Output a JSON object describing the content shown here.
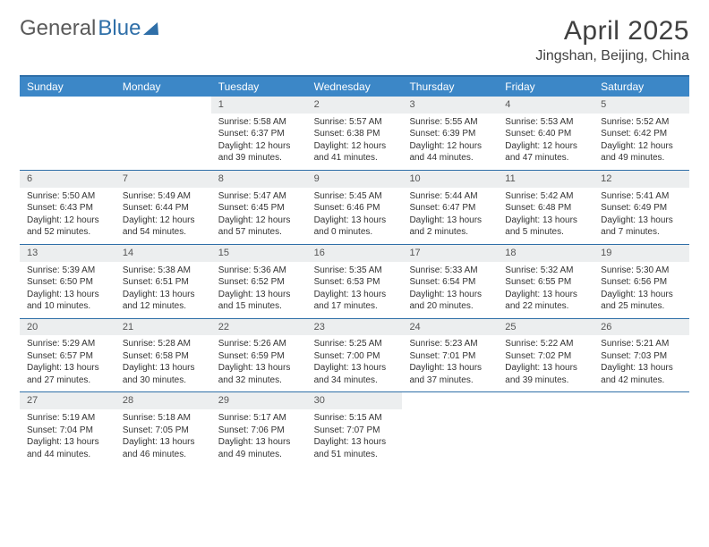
{
  "brand": {
    "first": "General",
    "second": "Blue"
  },
  "title": "April 2025",
  "location": "Jingshan, Beijing, China",
  "colors": {
    "header_bg": "#3c87c7",
    "header_text": "#ffffff",
    "rule": "#2f6fa8",
    "daynum_bg": "#eceeef",
    "text": "#333333",
    "brand_gray": "#5a5a5a",
    "brand_blue": "#2f6fa8"
  },
  "typography": {
    "title_fontsize": 30,
    "location_fontsize": 16,
    "dayheader_fontsize": 12,
    "daynum_fontsize": 11,
    "body_fontsize": 10
  },
  "day_names": [
    "Sunday",
    "Monday",
    "Tuesday",
    "Wednesday",
    "Thursday",
    "Friday",
    "Saturday"
  ],
  "weeks": [
    [
      {
        "n": "",
        "sr": "",
        "ss": "",
        "dl": ""
      },
      {
        "n": "",
        "sr": "",
        "ss": "",
        "dl": ""
      },
      {
        "n": "1",
        "sr": "Sunrise: 5:58 AM",
        "ss": "Sunset: 6:37 PM",
        "dl": "Daylight: 12 hours and 39 minutes."
      },
      {
        "n": "2",
        "sr": "Sunrise: 5:57 AM",
        "ss": "Sunset: 6:38 PM",
        "dl": "Daylight: 12 hours and 41 minutes."
      },
      {
        "n": "3",
        "sr": "Sunrise: 5:55 AM",
        "ss": "Sunset: 6:39 PM",
        "dl": "Daylight: 12 hours and 44 minutes."
      },
      {
        "n": "4",
        "sr": "Sunrise: 5:53 AM",
        "ss": "Sunset: 6:40 PM",
        "dl": "Daylight: 12 hours and 47 minutes."
      },
      {
        "n": "5",
        "sr": "Sunrise: 5:52 AM",
        "ss": "Sunset: 6:42 PM",
        "dl": "Daylight: 12 hours and 49 minutes."
      }
    ],
    [
      {
        "n": "6",
        "sr": "Sunrise: 5:50 AM",
        "ss": "Sunset: 6:43 PM",
        "dl": "Daylight: 12 hours and 52 minutes."
      },
      {
        "n": "7",
        "sr": "Sunrise: 5:49 AM",
        "ss": "Sunset: 6:44 PM",
        "dl": "Daylight: 12 hours and 54 minutes."
      },
      {
        "n": "8",
        "sr": "Sunrise: 5:47 AM",
        "ss": "Sunset: 6:45 PM",
        "dl": "Daylight: 12 hours and 57 minutes."
      },
      {
        "n": "9",
        "sr": "Sunrise: 5:45 AM",
        "ss": "Sunset: 6:46 PM",
        "dl": "Daylight: 13 hours and 0 minutes."
      },
      {
        "n": "10",
        "sr": "Sunrise: 5:44 AM",
        "ss": "Sunset: 6:47 PM",
        "dl": "Daylight: 13 hours and 2 minutes."
      },
      {
        "n": "11",
        "sr": "Sunrise: 5:42 AM",
        "ss": "Sunset: 6:48 PM",
        "dl": "Daylight: 13 hours and 5 minutes."
      },
      {
        "n": "12",
        "sr": "Sunrise: 5:41 AM",
        "ss": "Sunset: 6:49 PM",
        "dl": "Daylight: 13 hours and 7 minutes."
      }
    ],
    [
      {
        "n": "13",
        "sr": "Sunrise: 5:39 AM",
        "ss": "Sunset: 6:50 PM",
        "dl": "Daylight: 13 hours and 10 minutes."
      },
      {
        "n": "14",
        "sr": "Sunrise: 5:38 AM",
        "ss": "Sunset: 6:51 PM",
        "dl": "Daylight: 13 hours and 12 minutes."
      },
      {
        "n": "15",
        "sr": "Sunrise: 5:36 AM",
        "ss": "Sunset: 6:52 PM",
        "dl": "Daylight: 13 hours and 15 minutes."
      },
      {
        "n": "16",
        "sr": "Sunrise: 5:35 AM",
        "ss": "Sunset: 6:53 PM",
        "dl": "Daylight: 13 hours and 17 minutes."
      },
      {
        "n": "17",
        "sr": "Sunrise: 5:33 AM",
        "ss": "Sunset: 6:54 PM",
        "dl": "Daylight: 13 hours and 20 minutes."
      },
      {
        "n": "18",
        "sr": "Sunrise: 5:32 AM",
        "ss": "Sunset: 6:55 PM",
        "dl": "Daylight: 13 hours and 22 minutes."
      },
      {
        "n": "19",
        "sr": "Sunrise: 5:30 AM",
        "ss": "Sunset: 6:56 PM",
        "dl": "Daylight: 13 hours and 25 minutes."
      }
    ],
    [
      {
        "n": "20",
        "sr": "Sunrise: 5:29 AM",
        "ss": "Sunset: 6:57 PM",
        "dl": "Daylight: 13 hours and 27 minutes."
      },
      {
        "n": "21",
        "sr": "Sunrise: 5:28 AM",
        "ss": "Sunset: 6:58 PM",
        "dl": "Daylight: 13 hours and 30 minutes."
      },
      {
        "n": "22",
        "sr": "Sunrise: 5:26 AM",
        "ss": "Sunset: 6:59 PM",
        "dl": "Daylight: 13 hours and 32 minutes."
      },
      {
        "n": "23",
        "sr": "Sunrise: 5:25 AM",
        "ss": "Sunset: 7:00 PM",
        "dl": "Daylight: 13 hours and 34 minutes."
      },
      {
        "n": "24",
        "sr": "Sunrise: 5:23 AM",
        "ss": "Sunset: 7:01 PM",
        "dl": "Daylight: 13 hours and 37 minutes."
      },
      {
        "n": "25",
        "sr": "Sunrise: 5:22 AM",
        "ss": "Sunset: 7:02 PM",
        "dl": "Daylight: 13 hours and 39 minutes."
      },
      {
        "n": "26",
        "sr": "Sunrise: 5:21 AM",
        "ss": "Sunset: 7:03 PM",
        "dl": "Daylight: 13 hours and 42 minutes."
      }
    ],
    [
      {
        "n": "27",
        "sr": "Sunrise: 5:19 AM",
        "ss": "Sunset: 7:04 PM",
        "dl": "Daylight: 13 hours and 44 minutes."
      },
      {
        "n": "28",
        "sr": "Sunrise: 5:18 AM",
        "ss": "Sunset: 7:05 PM",
        "dl": "Daylight: 13 hours and 46 minutes."
      },
      {
        "n": "29",
        "sr": "Sunrise: 5:17 AM",
        "ss": "Sunset: 7:06 PM",
        "dl": "Daylight: 13 hours and 49 minutes."
      },
      {
        "n": "30",
        "sr": "Sunrise: 5:15 AM",
        "ss": "Sunset: 7:07 PM",
        "dl": "Daylight: 13 hours and 51 minutes."
      },
      {
        "n": "",
        "sr": "",
        "ss": "",
        "dl": ""
      },
      {
        "n": "",
        "sr": "",
        "ss": "",
        "dl": ""
      },
      {
        "n": "",
        "sr": "",
        "ss": "",
        "dl": ""
      }
    ]
  ]
}
